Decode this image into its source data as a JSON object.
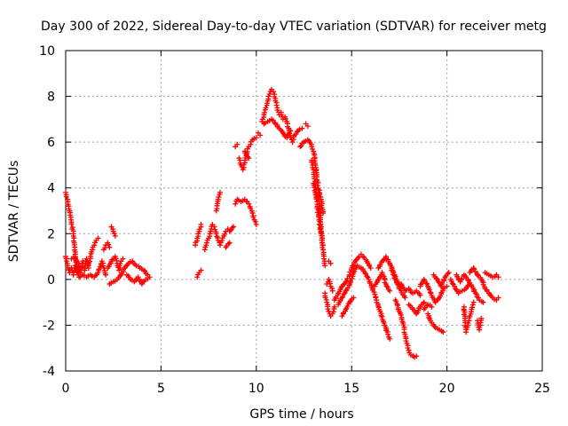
{
  "chart_data": {
    "type": "scatter",
    "title": "Day 300 of 2022, Sidereal Day-to-day VTEC variation (SDTVAR) for receiver metg",
    "xlabel": "GPS time / hours",
    "ylabel": "SDTVAR / TECUs",
    "xlim": [
      0,
      25
    ],
    "ylim": [
      -4,
      10
    ],
    "xticks": [
      0,
      5,
      10,
      15,
      20,
      25
    ],
    "yticks": [
      -4,
      -2,
      0,
      2,
      4,
      6,
      8,
      10
    ],
    "grid": true,
    "marker": "+",
    "color": "#ff0000",
    "segments": [
      [
        [
          0.0,
          3.8
        ],
        [
          0.1,
          3.5
        ],
        [
          0.2,
          3.0
        ],
        [
          0.3,
          2.5
        ],
        [
          0.4,
          2.0
        ],
        [
          0.45,
          1.6
        ],
        [
          0.5,
          1.2
        ],
        [
          0.55,
          0.8
        ]
      ],
      [
        [
          0.0,
          1.0
        ],
        [
          0.1,
          0.6
        ],
        [
          0.2,
          0.3
        ],
        [
          0.3,
          0.5
        ],
        [
          0.4,
          0.2
        ],
        [
          0.5,
          0.6
        ],
        [
          0.6,
          0.3
        ],
        [
          0.7,
          0.7
        ],
        [
          0.8,
          0.3
        ],
        [
          0.9,
          0.8
        ],
        [
          1.0,
          0.4
        ],
        [
          1.1,
          0.9
        ],
        [
          1.2,
          0.5
        ],
        [
          1.3,
          1.0
        ],
        [
          1.4,
          1.3
        ],
        [
          1.5,
          1.5
        ],
        [
          1.6,
          1.7
        ],
        [
          1.7,
          1.8
        ]
      ],
      [
        [
          0.3,
          0.9
        ],
        [
          0.5,
          1.0
        ],
        [
          0.7,
          0.1
        ],
        [
          0.9,
          0.2
        ],
        [
          1.1,
          0.1
        ],
        [
          1.3,
          0.2
        ],
        [
          1.5,
          0.1
        ],
        [
          1.7,
          0.3
        ],
        [
          1.9,
          0.8
        ],
        [
          2.0,
          0.5
        ],
        [
          2.1,
          0.2
        ]
      ],
      [
        [
          2.0,
          1.3
        ],
        [
          2.1,
          1.5
        ],
        [
          2.2,
          1.6
        ],
        [
          2.3,
          1.4
        ]
      ],
      [
        [
          2.4,
          2.3
        ],
        [
          2.5,
          2.1
        ],
        [
          2.6,
          1.9
        ]
      ],
      [
        [
          2.2,
          0.5
        ],
        [
          2.4,
          0.8
        ],
        [
          2.6,
          1.0
        ],
        [
          2.7,
          0.7
        ],
        [
          2.8,
          0.4
        ],
        [
          2.9,
          0.8
        ],
        [
          3.0,
          0.9
        ]
      ],
      [
        [
          2.3,
          -0.2
        ],
        [
          2.5,
          -0.1
        ],
        [
          2.7,
          0.0
        ],
        [
          2.9,
          0.2
        ],
        [
          3.1,
          0.5
        ],
        [
          3.3,
          0.7
        ],
        [
          3.5,
          0.8
        ],
        [
          3.7,
          0.6
        ],
        [
          3.9,
          0.5
        ],
        [
          4.1,
          0.4
        ],
        [
          4.3,
          0.2
        ]
      ],
      [
        [
          3.2,
          0.2
        ],
        [
          3.4,
          0.0
        ],
        [
          3.6,
          -0.1
        ],
        [
          3.8,
          0.1
        ],
        [
          4.0,
          -0.2
        ],
        [
          4.2,
          0.0
        ],
        [
          4.4,
          0.1
        ]
      ],
      [
        [
          6.9,
          0.1
        ],
        [
          7.0,
          0.3
        ],
        [
          7.1,
          0.4
        ]
      ],
      [
        [
          6.8,
          1.5
        ],
        [
          6.9,
          1.8
        ],
        [
          7.0,
          2.1
        ],
        [
          7.1,
          2.4
        ]
      ],
      [
        [
          7.3,
          1.3
        ],
        [
          7.4,
          1.6
        ],
        [
          7.5,
          1.8
        ],
        [
          7.6,
          2.1
        ],
        [
          7.7,
          2.4
        ],
        [
          7.8,
          2.3
        ],
        [
          7.9,
          2.0
        ],
        [
          8.0,
          1.7
        ],
        [
          8.1,
          1.5
        ],
        [
          8.2,
          1.7
        ],
        [
          8.3,
          1.9
        ],
        [
          8.4,
          2.1
        ],
        [
          8.5,
          2.2
        ]
      ],
      [
        [
          7.9,
          3.0
        ],
        [
          8.0,
          3.5
        ],
        [
          8.1,
          3.8
        ]
      ],
      [
        [
          8.6,
          2.1
        ],
        [
          8.8,
          2.3
        ]
      ],
      [
        [
          8.4,
          1.4
        ],
        [
          8.6,
          1.6
        ]
      ],
      [
        [
          8.9,
          3.3
        ],
        [
          9.0,
          3.5
        ],
        [
          9.2,
          3.4
        ],
        [
          9.4,
          3.5
        ],
        [
          9.6,
          3.3
        ],
        [
          9.7,
          3.1
        ],
        [
          9.8,
          2.9
        ],
        [
          9.9,
          2.6
        ],
        [
          10.0,
          2.4
        ]
      ],
      [
        [
          8.9,
          5.8
        ],
        [
          9.0,
          5.9
        ]
      ],
      [
        [
          9.1,
          5.3
        ],
        [
          9.2,
          5.0
        ],
        [
          9.3,
          4.8
        ],
        [
          9.4,
          5.1
        ],
        [
          9.5,
          5.5
        ],
        [
          9.6,
          5.8
        ],
        [
          9.7,
          5.9
        ],
        [
          9.8,
          6.1
        ],
        [
          10.0,
          6.2
        ]
      ],
      [
        [
          9.4,
          5.6
        ],
        [
          9.6,
          5.3
        ]
      ],
      [
        [
          10.1,
          6.4
        ],
        [
          10.2,
          6.3
        ]
      ],
      [
        [
          10.3,
          6.9
        ],
        [
          10.4,
          7.2
        ],
        [
          10.5,
          7.5
        ],
        [
          10.6,
          7.8
        ],
        [
          10.7,
          8.1
        ],
        [
          10.8,
          8.3
        ],
        [
          10.9,
          8.2
        ],
        [
          11.0,
          7.9
        ],
        [
          11.1,
          7.5
        ],
        [
          11.2,
          7.2
        ],
        [
          11.3,
          7.3
        ],
        [
          11.4,
          7.0
        ]
      ],
      [
        [
          10.4,
          6.8
        ],
        [
          10.6,
          6.9
        ],
        [
          10.8,
          7.0
        ],
        [
          11.0,
          6.8
        ],
        [
          11.2,
          6.6
        ],
        [
          11.4,
          6.4
        ],
        [
          11.6,
          6.2
        ],
        [
          11.8,
          6.5
        ]
      ],
      [
        [
          11.5,
          7.1
        ],
        [
          11.6,
          6.9
        ],
        [
          11.7,
          6.6
        ],
        [
          11.8,
          6.2
        ],
        [
          11.9,
          6.0
        ],
        [
          12.0,
          6.3
        ],
        [
          12.2,
          6.5
        ],
        [
          12.4,
          6.6
        ]
      ],
      [
        [
          12.6,
          6.8
        ],
        [
          12.7,
          6.7
        ]
      ],
      [
        [
          12.3,
          5.8
        ],
        [
          12.5,
          6.0
        ],
        [
          12.7,
          6.1
        ],
        [
          12.9,
          5.9
        ],
        [
          13.0,
          5.6
        ],
        [
          13.1,
          5.0
        ],
        [
          13.2,
          4.3
        ],
        [
          13.25,
          3.8
        ],
        [
          13.3,
          3.3
        ],
        [
          13.35,
          2.8
        ],
        [
          13.4,
          2.3
        ],
        [
          13.45,
          1.8
        ],
        [
          13.5,
          1.3
        ],
        [
          13.55,
          0.9
        ],
        [
          13.6,
          0.6
        ]
      ],
      [
        [
          12.9,
          5.2
        ],
        [
          13.0,
          4.8
        ],
        [
          13.05,
          4.4
        ],
        [
          13.1,
          4.0
        ],
        [
          13.15,
          3.6
        ],
        [
          13.2,
          3.2
        ],
        [
          13.3,
          2.6
        ],
        [
          13.4,
          2.0
        ],
        [
          13.5,
          1.5
        ]
      ],
      [
        [
          13.0,
          4.2
        ],
        [
          13.1,
          3.8
        ],
        [
          13.2,
          3.4
        ],
        [
          13.3,
          3.9
        ],
        [
          13.4,
          3.5
        ],
        [
          13.5,
          2.9
        ]
      ],
      [
        [
          13.8,
          0.8
        ],
        [
          13.9,
          0.7
        ]
      ],
      [
        [
          13.6,
          -0.6
        ],
        [
          13.7,
          -1.0
        ],
        [
          13.8,
          -1.4
        ],
        [
          13.9,
          -1.6
        ],
        [
          14.0,
          -1.5
        ],
        [
          14.1,
          -1.2
        ]
      ],
      [
        [
          13.7,
          -0.2
        ],
        [
          13.8,
          0.0
        ],
        [
          13.9,
          -0.3
        ],
        [
          14.0,
          -0.5
        ]
      ],
      [
        [
          14.1,
          -0.9
        ],
        [
          14.3,
          -0.6
        ],
        [
          14.5,
          -0.3
        ],
        [
          14.7,
          -0.1
        ],
        [
          14.9,
          0.2
        ],
        [
          15.0,
          0.5
        ],
        [
          15.2,
          0.8
        ],
        [
          15.4,
          1.0
        ],
        [
          15.5,
          1.1
        ],
        [
          15.6,
          1.0
        ],
        [
          15.8,
          0.8
        ],
        [
          16.0,
          0.5
        ]
      ],
      [
        [
          14.3,
          -1.1
        ],
        [
          14.5,
          -0.8
        ],
        [
          14.7,
          -0.5
        ],
        [
          14.9,
          -0.2
        ],
        [
          15.1,
          0.3
        ],
        [
          15.3,
          0.6
        ],
        [
          15.5,
          0.5
        ],
        [
          15.7,
          0.3
        ],
        [
          15.9,
          0.0
        ],
        [
          16.1,
          -0.4
        ],
        [
          16.3,
          -0.9
        ],
        [
          16.5,
          -1.4
        ],
        [
          16.7,
          -1.9
        ],
        [
          16.9,
          -2.4
        ],
        [
          17.0,
          -2.6
        ]
      ],
      [
        [
          14.5,
          -1.6
        ],
        [
          14.7,
          -1.3
        ],
        [
          14.9,
          -1.0
        ],
        [
          15.1,
          -0.8
        ]
      ],
      [
        [
          16.2,
          -0.3
        ],
        [
          16.4,
          0.0
        ],
        [
          16.6,
          0.3
        ],
        [
          16.8,
          -0.2
        ],
        [
          17.0,
          -0.5
        ]
      ],
      [
        [
          16.4,
          0.5
        ],
        [
          16.6,
          0.8
        ],
        [
          16.8,
          1.0
        ],
        [
          17.0,
          0.7
        ],
        [
          17.2,
          0.3
        ],
        [
          17.4,
          -0.1
        ],
        [
          17.6,
          -0.5
        ],
        [
          17.8,
          -0.8
        ]
      ],
      [
        [
          17.1,
          0.4
        ],
        [
          17.3,
          0.0
        ],
        [
          17.5,
          -0.4
        ]
      ],
      [
        [
          17.3,
          -0.9
        ],
        [
          17.5,
          -1.4
        ],
        [
          17.7,
          -1.9
        ],
        [
          17.8,
          -2.4
        ],
        [
          17.9,
          -2.8
        ],
        [
          18.0,
          -3.1
        ],
        [
          18.1,
          -3.3
        ],
        [
          18.3,
          -3.4
        ],
        [
          18.4,
          -3.35
        ]
      ],
      [
        [
          17.6,
          -0.2
        ],
        [
          17.8,
          -0.5
        ],
        [
          18.0,
          -0.4
        ],
        [
          18.2,
          -0.6
        ],
        [
          18.4,
          -0.5
        ],
        [
          18.6,
          -0.7
        ]
      ],
      [
        [
          18.0,
          -1.1
        ],
        [
          18.2,
          -1.3
        ],
        [
          18.4,
          -1.5
        ],
        [
          18.6,
          -1.2
        ],
        [
          18.8,
          -1.0
        ]
      ],
      [
        [
          18.6,
          -0.3
        ],
        [
          18.8,
          0.0
        ],
        [
          19.0,
          -0.3
        ],
        [
          19.2,
          -0.7
        ],
        [
          19.4,
          -1.0
        ],
        [
          19.6,
          -0.8
        ],
        [
          19.8,
          -0.4
        ],
        [
          20.0,
          -0.3
        ]
      ],
      [
        [
          18.8,
          -1.3
        ],
        [
          19.0,
          -1.1
        ],
        [
          19.2,
          -1.2
        ]
      ],
      [
        [
          19.0,
          -1.5
        ],
        [
          19.2,
          -1.9
        ],
        [
          19.4,
          -2.1
        ],
        [
          19.6,
          -2.2
        ],
        [
          19.8,
          -2.3
        ]
      ],
      [
        [
          19.3,
          0.2
        ],
        [
          19.5,
          0.0
        ],
        [
          19.7,
          -0.3
        ],
        [
          19.9,
          0.1
        ],
        [
          20.1,
          0.3
        ]
      ],
      [
        [
          20.2,
          0.0
        ],
        [
          20.4,
          -0.3
        ],
        [
          20.6,
          -0.6
        ],
        [
          20.8,
          -0.5
        ],
        [
          21.0,
          -0.4
        ],
        [
          21.2,
          -0.2
        ]
      ],
      [
        [
          20.5,
          0.2
        ],
        [
          20.7,
          -0.1
        ],
        [
          20.9,
          0.2
        ],
        [
          21.1,
          0.0
        ],
        [
          21.3,
          -0.3
        ],
        [
          21.5,
          -0.6
        ],
        [
          21.7,
          -0.9
        ],
        [
          21.9,
          -1.0
        ]
      ],
      [
        [
          20.9,
          -1.2
        ],
        [
          20.95,
          -1.8
        ],
        [
          21.0,
          -2.3
        ],
        [
          21.1,
          -2.0
        ],
        [
          21.2,
          -1.6
        ],
        [
          21.3,
          -1.3
        ],
        [
          21.4,
          -1.0
        ]
      ],
      [
        [
          21.2,
          0.3
        ],
        [
          21.4,
          0.5
        ],
        [
          21.6,
          0.2
        ],
        [
          21.8,
          0.0
        ],
        [
          22.0,
          -0.4
        ],
        [
          22.2,
          -0.6
        ],
        [
          22.4,
          -0.8
        ],
        [
          22.6,
          -0.9
        ],
        [
          22.7,
          -0.8
        ]
      ],
      [
        [
          21.6,
          -1.8
        ],
        [
          21.7,
          -2.2
        ],
        [
          21.8,
          -1.7
        ]
      ],
      [
        [
          22.0,
          0.3
        ],
        [
          22.2,
          0.2
        ],
        [
          22.4,
          0.1
        ],
        [
          22.6,
          0.2
        ],
        [
          22.7,
          0.1
        ]
      ]
    ]
  }
}
